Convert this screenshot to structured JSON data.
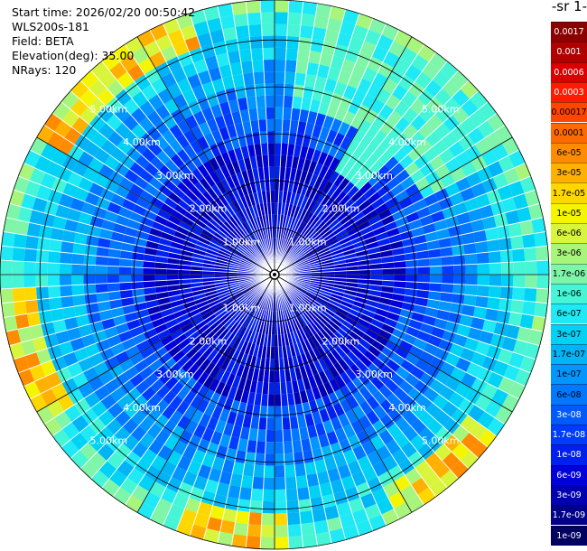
{
  "header": {
    "start_time": "Start time: 2026/02/20 00:50:42",
    "instrument": "WLS200s-181",
    "field": "Field: BETA",
    "elevation": "Elevation(deg): 35.00",
    "nrays": "NRays: 120"
  },
  "colorbar": {
    "title_fragment": "-1 sr-",
    "ticks": [
      "0.0017",
      "0.001",
      "0.0006",
      "0.0003",
      "0.00017",
      "0.0001",
      "6e-05",
      "3e-05",
      "1.7e-05",
      "1e-05",
      "6e-06",
      "3e-06",
      "1.7e-06",
      "1e-06",
      "6e-07",
      "3e-07",
      "1.7e-07",
      "1e-07",
      "6e-08",
      "3e-08",
      "1.7e-08",
      "1e-08",
      "6e-09",
      "3e-09",
      "1.7e-09",
      "1e-09"
    ],
    "colors": [
      "#8b0000",
      "#b00000",
      "#d80000",
      "#ff1a00",
      "#ff4500",
      "#ff6a00",
      "#ff8c00",
      "#ffb000",
      "#ffd700",
      "#f5f500",
      "#d8f53b",
      "#a8f57c",
      "#7ef5a8",
      "#45f5d6",
      "#1ee9f5",
      "#00d2f5",
      "#00b4f5",
      "#0096ff",
      "#0078ff",
      "#005aff",
      "#003cff",
      "#0020f0",
      "#0000d8",
      "#0000b0",
      "#000088",
      "#000060"
    ],
    "text_colors": [
      "#ffffff",
      "#ffffff",
      "#ffffff",
      "#ffffff",
      "#000000",
      "#000000",
      "#000000",
      "#000000",
      "#000000",
      "#000000",
      "#000000",
      "#000000",
      "#000000",
      "#000000",
      "#000000",
      "#000000",
      "#000000",
      "#000000",
      "#000000",
      "#ffffff",
      "#ffffff",
      "#ffffff",
      "#ffffff",
      "#ffffff",
      "#ffffff",
      "#ffffff"
    ]
  },
  "chart_data": {
    "type": "heatmap",
    "projection": "polar PPI",
    "nrays": 120,
    "range_ring_labels": [
      "1.00km",
      "2.00km",
      "3.00km",
      "4.00km",
      "5.00km"
    ],
    "range_ring_values_km": [
      1,
      2,
      3,
      4,
      5
    ],
    "max_range_km": 5.85,
    "field": "BETA",
    "grid": true
  }
}
